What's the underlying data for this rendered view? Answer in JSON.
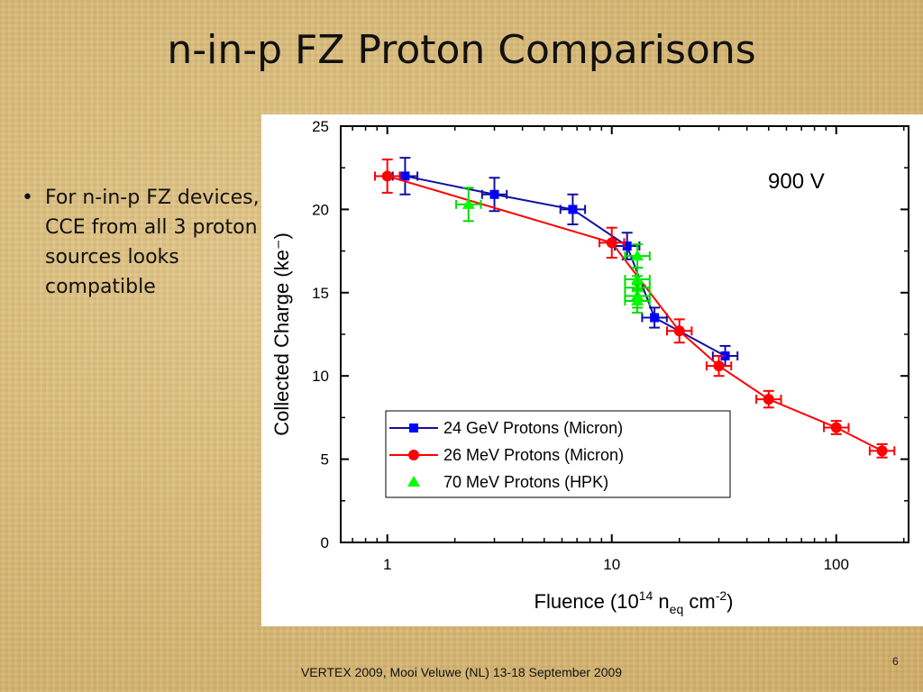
{
  "slide": {
    "title": "n-in-p FZ Proton Comparisons",
    "bullet": "For n-in-p FZ devices, CCE from all 3 proton sources looks compatible",
    "bullet_marker": "•",
    "footer": "VERTEX 2009, Mooi Veluwe (NL) 13-18 September 2009",
    "page_number": "6"
  },
  "chart_data": {
    "type": "scatter",
    "title": "",
    "annotation": "900 V",
    "xlabel": {
      "main": "Fluence (10",
      "sup1": "14",
      "mid": " n",
      "sub": "eq",
      "post": " cm",
      "sup2": "-2",
      "close": ")"
    },
    "ylabel": "Collected Charge (ke⁻)",
    "xscale": "log",
    "xlim": [
      0.62,
      210
    ],
    "ylim": [
      0,
      25
    ],
    "x_ticks": [
      1,
      10,
      100
    ],
    "x_tick_labels": [
      "1",
      "10",
      "100"
    ],
    "y_ticks": [
      0,
      5,
      10,
      15,
      20,
      25
    ],
    "y_tick_labels": [
      "0",
      "5",
      "10",
      "15",
      "20",
      "25"
    ],
    "grid": false,
    "legend_position": "bottom-center",
    "series": [
      {
        "name": "24 GeV Protons (Micron)",
        "color": "#1010a0",
        "marker_color": "#0000ff",
        "marker": "square",
        "line": true,
        "x": [
          1.2,
          3.0,
          6.7,
          11.7,
          15.5,
          32.0
        ],
        "y": [
          22.0,
          20.9,
          20.0,
          17.8,
          13.5,
          11.2
        ],
        "yerr": [
          1.1,
          1.0,
          0.9,
          0.8,
          0.6,
          0.6
        ]
      },
      {
        "name": "26 MeV Protons (Micron)",
        "color": "#ff0000",
        "marker_color": "#ff0000",
        "marker": "circle",
        "line": true,
        "x": [
          1.0,
          10.0,
          20.0,
          30.0,
          50.0,
          100.0,
          160.0
        ],
        "y": [
          22.0,
          18.0,
          12.7,
          10.6,
          8.6,
          6.9,
          5.5
        ],
        "yerr": [
          1.0,
          0.9,
          0.7,
          0.6,
          0.5,
          0.4,
          0.4
        ]
      },
      {
        "name": "70 MeV Protons (HPK)",
        "color": "#00dd00",
        "marker_color": "#00ff00",
        "marker": "triangle",
        "line": false,
        "x": [
          2.3,
          13.0,
          13.0,
          13.0,
          13.0,
          13.0
        ],
        "y": [
          20.3,
          17.2,
          15.8,
          15.3,
          14.8,
          14.5
        ],
        "yerr": [
          1.0,
          0.7,
          0.7,
          0.7,
          0.7,
          0.7
        ]
      }
    ]
  }
}
